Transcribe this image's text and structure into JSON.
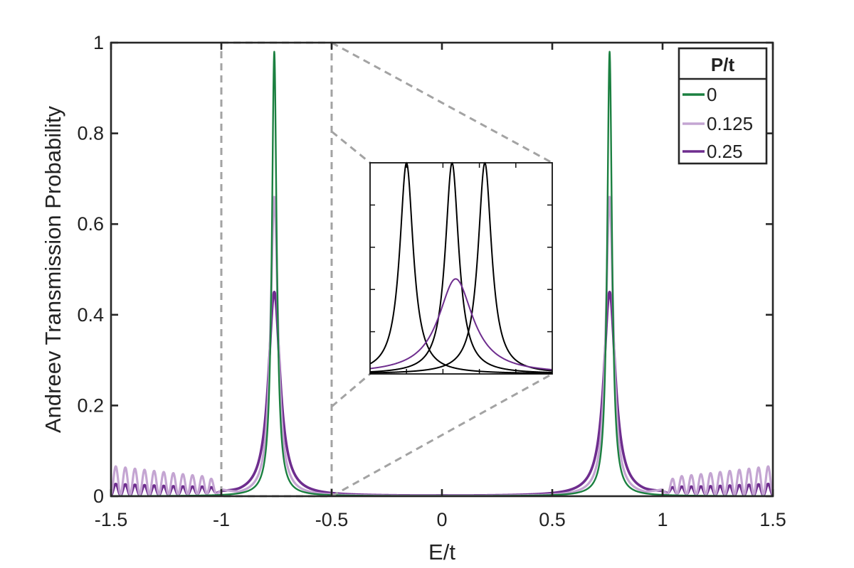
{
  "chart_data": {
    "type": "line",
    "title": "",
    "xlabel": "E/t",
    "ylabel": "Andreev Transmission Probability",
    "xlim": [
      -1.5,
      1.5
    ],
    "ylim": [
      0,
      1
    ],
    "xticks": [
      -1.5,
      -1,
      -0.5,
      0,
      0.5,
      1,
      1.5
    ],
    "xtick_labels": [
      "-1.5",
      "-1",
      "-0.5",
      "0",
      "0.5",
      "1",
      "1.5"
    ],
    "yticks": [
      0,
      0.2,
      0.4,
      0.6,
      0.8,
      1
    ],
    "ytick_labels": [
      "0",
      "0.2",
      "0.4",
      "0.6",
      "0.8",
      "1"
    ],
    "grid": false,
    "legend": {
      "title": "P/t",
      "position": "top-right",
      "entries": [
        "0",
        "0.125",
        "0.25"
      ]
    },
    "series": [
      {
        "name": "0",
        "color": "#1b8040",
        "peak_E": [
          -0.76,
          0.76
        ],
        "peak_value": 0.98,
        "half_width": 0.013
      },
      {
        "name": "0.125",
        "color": "#c4a5d2",
        "peak_E": [
          -0.76,
          0.76
        ],
        "peak_value": 0.66,
        "half_width": 0.02,
        "band_edge_oscillation_amplitude": 0.035
      },
      {
        "name": "0.25",
        "color": "#6e2d8e",
        "peak_E": [
          -0.76,
          0.76
        ],
        "peak_value": 0.45,
        "half_width": 0.032,
        "band_edge_oscillation_amplitude": 0.014
      }
    ],
    "zoom_region": {
      "xlim": [
        -1,
        -0.5
      ],
      "ylim": [
        0,
        1
      ]
    },
    "inset": {
      "black_peak_positions": [
        0.2,
        0.45,
        0.63
      ],
      "black_peak_value": 1.0,
      "purple_peak_position": 0.47,
      "purple_peak_value": 0.45
    }
  }
}
